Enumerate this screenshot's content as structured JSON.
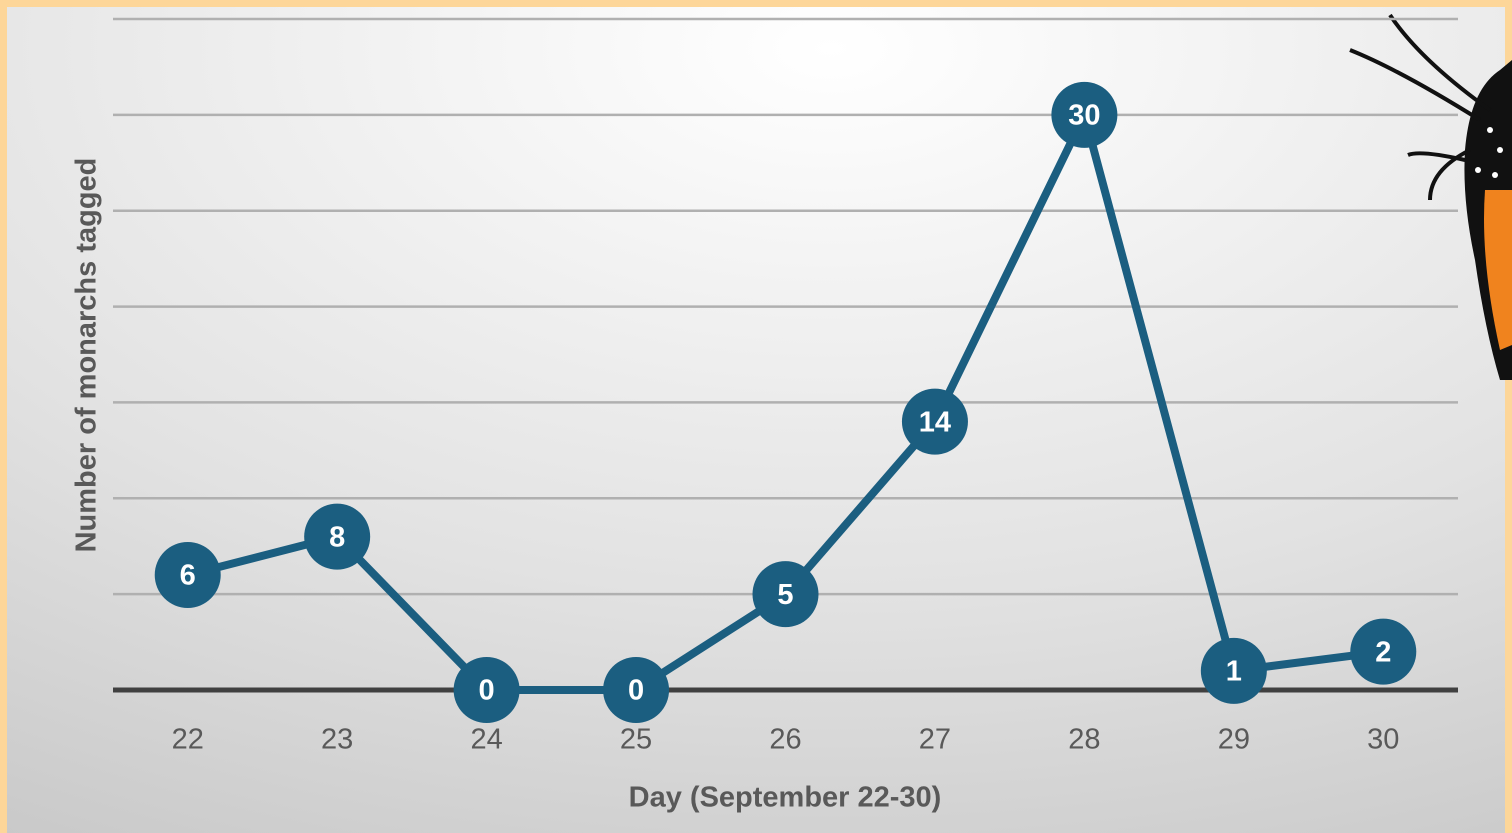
{
  "chart_data": {
    "type": "line",
    "x_label": "Day (September 22-30)",
    "y_label": "Number of monarchs tagged",
    "categories": [
      "22",
      "23",
      "24",
      "25",
      "26",
      "27",
      "28",
      "29",
      "30"
    ],
    "values": [
      6,
      8,
      0,
      0,
      5,
      14,
      30,
      1,
      2
    ],
    "color": "#1b5e80",
    "ylim": [
      0,
      35
    ],
    "yticks": [
      0,
      5,
      10,
      15,
      20,
      25,
      30,
      35
    ],
    "show_ytick_labels": false,
    "grid": true,
    "data_labels": true
  }
}
